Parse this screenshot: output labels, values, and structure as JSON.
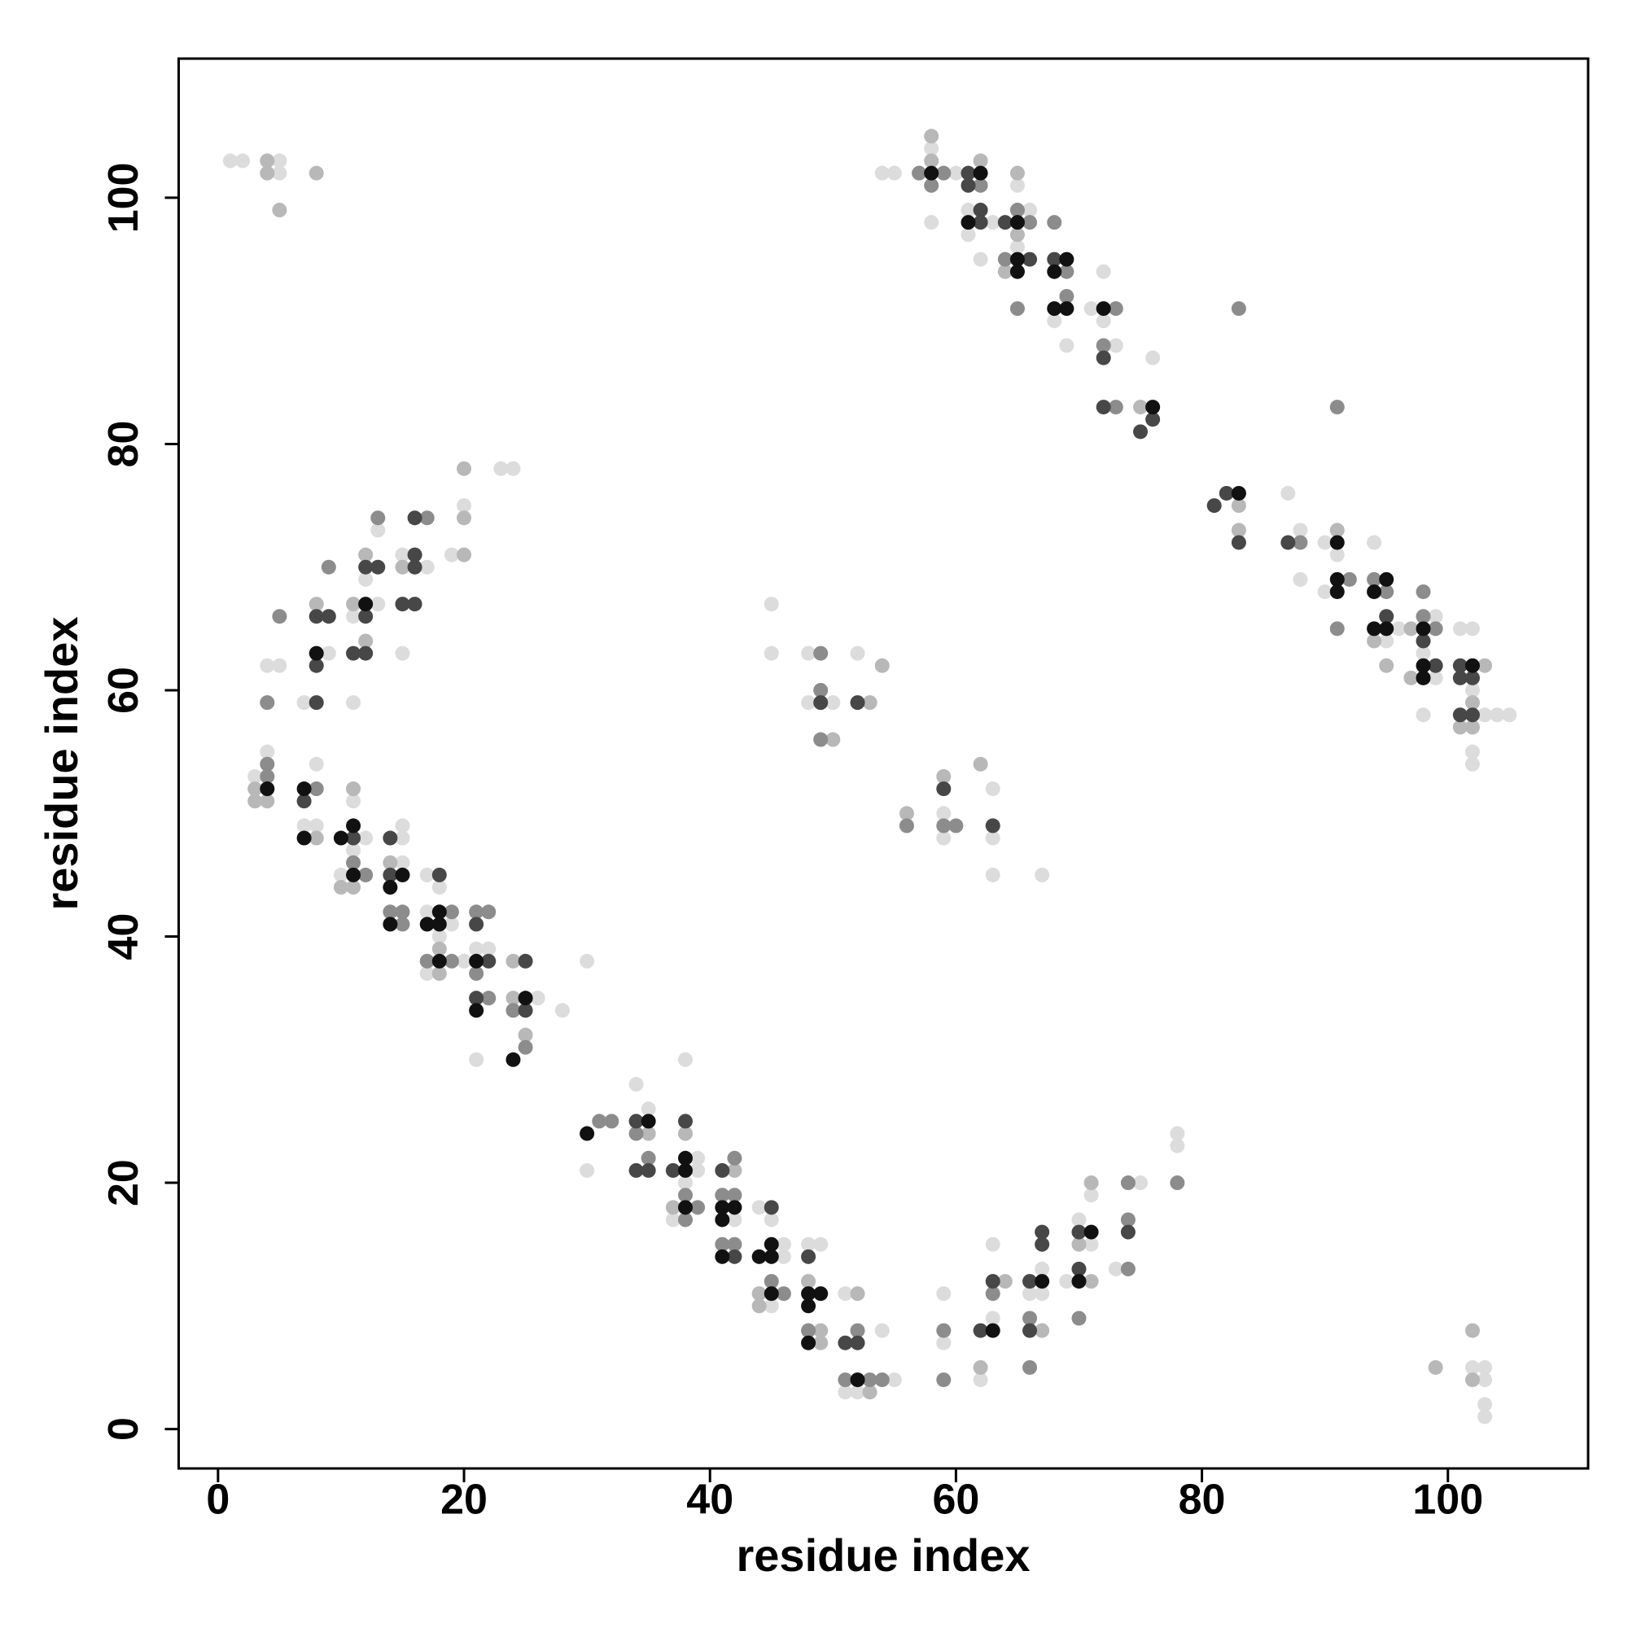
{
  "chart_data": {
    "type": "scatter",
    "x_label": "residue index",
    "y_label": "residue index",
    "xlim": [
      -3.2,
      111.4
    ],
    "ylim": [
      -3.2,
      111.3
    ],
    "xticks": [
      0,
      20,
      40,
      60,
      80,
      100
    ],
    "yticks": [
      0,
      20,
      40,
      60,
      80,
      100
    ],
    "series": [
      {
        "color": "#dcdcdc",
        "x": [
          1,
          2,
          5,
          5,
          4,
          5,
          7,
          9,
          11,
          11,
          12,
          13,
          13,
          15,
          15,
          17,
          19,
          20,
          23,
          24,
          3,
          4,
          7,
          8,
          8,
          10,
          11,
          11,
          12,
          15,
          15,
          15,
          17,
          17,
          17,
          18,
          18,
          19,
          20,
          21,
          21,
          22,
          26,
          28,
          30,
          30,
          34,
          35,
          37,
          38,
          38,
          39,
          39,
          42,
          44,
          45,
          45,
          46,
          46,
          48,
          49,
          51,
          51,
          52,
          54,
          55,
          59,
          59,
          62,
          63,
          63,
          66,
          67,
          67,
          69,
          70,
          71,
          71,
          73,
          75,
          78,
          78,
          45,
          45,
          48,
          48,
          50,
          52,
          59,
          59,
          63,
          63,
          63,
          67,
          54,
          55,
          58,
          58,
          60,
          61,
          61,
          62,
          63,
          65,
          65,
          66,
          68,
          69,
          71,
          72,
          72,
          73,
          76,
          87,
          88,
          88,
          90,
          90,
          91,
          94,
          95,
          96,
          98,
          98,
          99,
          99,
          101,
          102,
          102,
          102,
          102,
          103,
          104,
          105,
          102,
          103,
          103,
          103,
          103
        ],
        "y": [
          103,
          103,
          103,
          102,
          62,
          62,
          59,
          63,
          59,
          66,
          69,
          67,
          73,
          63,
          71,
          70,
          71,
          75,
          78,
          78,
          53,
          55,
          49,
          49,
          54,
          45,
          47,
          51,
          48,
          49,
          48,
          46,
          45,
          42,
          37,
          44,
          40,
          41,
          38,
          39,
          30,
          39,
          35,
          34,
          38,
          21,
          28,
          26,
          17,
          30,
          20,
          22,
          21,
          17,
          18,
          17,
          10,
          15,
          14,
          15,
          15,
          11,
          3,
          3,
          8,
          4,
          11,
          7,
          4,
          15,
          9,
          11,
          13,
          11,
          12,
          17,
          19,
          15,
          13,
          20,
          24,
          23,
          67,
          63,
          63,
          59,
          59,
          63,
          50,
          48,
          52,
          48,
          45,
          45,
          102,
          102,
          104,
          98,
          102,
          99,
          97,
          95,
          98,
          101,
          96,
          99,
          90,
          88,
          91,
          94,
          90,
          88,
          87,
          76,
          73,
          69,
          72,
          68,
          71,
          72,
          64,
          65,
          63,
          58,
          66,
          61,
          65,
          65,
          60,
          55,
          54,
          58,
          58,
          58,
          5,
          5,
          4,
          2,
          1
        ]
      },
      {
        "color": "#b8b8b8",
        "x": [
          4,
          4,
          5,
          8,
          8,
          11,
          12,
          12,
          15,
          20,
          20,
          20,
          3,
          3,
          4,
          8,
          10,
          11,
          11,
          14,
          18,
          18,
          24,
          24,
          25,
          35,
          37,
          38,
          42,
          44,
          44,
          48,
          49,
          49,
          52,
          53,
          62,
          64,
          67,
          70,
          71,
          71,
          50,
          53,
          54,
          56,
          59,
          62,
          58,
          58,
          62,
          64,
          65,
          65,
          75,
          83,
          83,
          91,
          94,
          95,
          97,
          97,
          101,
          102,
          102,
          103,
          99,
          102,
          102
        ],
        "y": [
          103,
          102,
          99,
          102,
          67,
          67,
          64,
          71,
          70,
          71,
          74,
          78,
          51,
          52,
          51,
          48,
          44,
          44,
          52,
          46,
          39,
          37,
          38,
          35,
          32,
          24,
          18,
          24,
          21,
          11,
          10,
          12,
          8,
          7,
          11,
          3,
          5,
          12,
          8,
          15,
          20,
          12,
          56,
          59,
          62,
          50,
          53,
          54,
          105,
          103,
          103,
          94,
          102,
          97,
          83,
          75,
          73,
          73,
          64,
          62,
          65,
          61,
          57,
          59,
          57,
          62,
          5,
          8,
          4
        ]
      },
      {
        "color": "#8c8c8c",
        "x": [
          4,
          5,
          9,
          13,
          17,
          4,
          4,
          8,
          11,
          12,
          14,
          15,
          15,
          17,
          19,
          19,
          21,
          21,
          22,
          22,
          24,
          25,
          31,
          32,
          34,
          35,
          38,
          38,
          39,
          41,
          41,
          42,
          42,
          42,
          45,
          46,
          48,
          51,
          52,
          53,
          54,
          59,
          59,
          63,
          66,
          66,
          70,
          74,
          74,
          74,
          78,
          49,
          49,
          49,
          56,
          59,
          60,
          57,
          58,
          59,
          62,
          64,
          65,
          65,
          66,
          68,
          69,
          69,
          72,
          73,
          73,
          83,
          91,
          88,
          91,
          92,
          94,
          95,
          98,
          98,
          99
        ],
        "y": [
          59,
          66,
          70,
          74,
          74,
          53,
          54,
          52,
          46,
          45,
          42,
          42,
          41,
          38,
          42,
          38,
          42,
          37,
          42,
          35,
          34,
          31,
          25,
          25,
          24,
          22,
          19,
          17,
          18,
          19,
          15,
          22,
          19,
          15,
          12,
          11,
          8,
          4,
          8,
          4,
          4,
          8,
          4,
          11,
          9,
          5,
          9,
          20,
          17,
          13,
          20,
          63,
          60,
          56,
          49,
          49,
          49,
          102,
          101,
          102,
          101,
          95,
          99,
          91,
          98,
          98,
          94,
          92,
          88,
          91,
          83,
          91,
          83,
          72,
          65,
          69,
          69,
          68,
          68,
          66,
          65
        ]
      },
      {
        "color": "#474747",
        "x": [
          8,
          8,
          8,
          9,
          11,
          12,
          12,
          12,
          13,
          15,
          16,
          16,
          16,
          16,
          7,
          11,
          14,
          14,
          18,
          21,
          21,
          22,
          25,
          25,
          34,
          34,
          35,
          37,
          38,
          41,
          42,
          45,
          48,
          51,
          52,
          62,
          63,
          66,
          66,
          67,
          67,
          70,
          70,
          74,
          49,
          52,
          59,
          63,
          61,
          61,
          62,
          62,
          64,
          66,
          68,
          72,
          72,
          75,
          76,
          81,
          82,
          83,
          87,
          95,
          98,
          99,
          101,
          101,
          101,
          102,
          102
        ],
        "y": [
          59,
          62,
          66,
          66,
          63,
          63,
          66,
          70,
          70,
          67,
          67,
          70,
          71,
          74,
          51,
          48,
          48,
          45,
          45,
          41,
          35,
          38,
          38,
          34,
          25,
          21,
          21,
          21,
          25,
          21,
          14,
          18,
          14,
          7,
          7,
          8,
          12,
          12,
          8,
          16,
          15,
          16,
          13,
          16,
          59,
          59,
          52,
          49,
          102,
          101,
          99,
          98,
          98,
          95,
          95,
          87,
          83,
          81,
          82,
          75,
          76,
          72,
          72,
          66,
          64,
          62,
          62,
          61,
          58,
          61,
          58
        ]
      },
      {
        "color": "#111111",
        "x": [
          8,
          12,
          4,
          7,
          7,
          10,
          11,
          11,
          14,
          14,
          15,
          17,
          18,
          18,
          18,
          21,
          21,
          24,
          25,
          30,
          35,
          38,
          38,
          38,
          41,
          41,
          41,
          42,
          44,
          45,
          45,
          45,
          48,
          48,
          48,
          49,
          52,
          63,
          67,
          70,
          71,
          58,
          61,
          62,
          65,
          65,
          65,
          68,
          68,
          69,
          69,
          72,
          76,
          83,
          91,
          91,
          91,
          94,
          94,
          95,
          95,
          98,
          98,
          98,
          102
        ],
        "y": [
          63,
          67,
          52,
          52,
          48,
          48,
          49,
          45,
          44,
          41,
          45,
          41,
          42,
          41,
          38,
          38,
          34,
          30,
          35,
          24,
          25,
          22,
          21,
          18,
          18,
          17,
          14,
          18,
          14,
          15,
          14,
          11,
          11,
          10,
          7,
          11,
          4,
          8,
          12,
          12,
          16,
          102,
          98,
          102,
          98,
          95,
          94,
          94,
          91,
          95,
          91,
          91,
          83,
          76,
          72,
          69,
          68,
          68,
          65,
          69,
          65,
          65,
          62,
          61,
          62
        ]
      }
    ]
  }
}
